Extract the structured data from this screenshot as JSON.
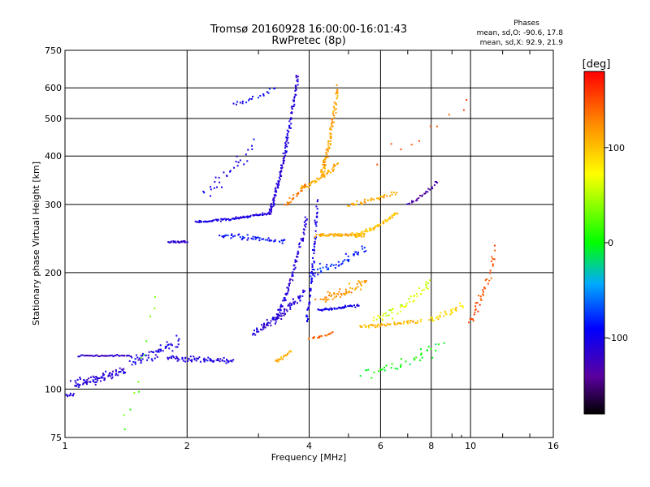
{
  "chart_data": {
    "type": "scatter",
    "title": "Tromsø 20160928 16:00:00-16:01:43",
    "subtitle": "RwPretec (8p)",
    "xlabel": "Frequency [MHz]",
    "ylabel": "Stationary phase Virtual Height [km]",
    "x_scale": "log",
    "y_scale": "log",
    "xlim": [
      1,
      16
    ],
    "ylim": [
      75,
      750
    ],
    "x_ticks": [
      1,
      2,
      4,
      6,
      8,
      10,
      16
    ],
    "x_tick_labels": [
      "1",
      "2",
      "4",
      "6",
      "8",
      "10",
      "16"
    ],
    "y_ticks": [
      75,
      100,
      200,
      300,
      400,
      500,
      600,
      750
    ],
    "y_tick_labels": [
      "75",
      "100",
      "200",
      "300",
      "400",
      "500",
      "600",
      "750"
    ],
    "grid": true,
    "stats": {
      "heading": "Phases",
      "line_o": "mean, sd,O: -90.6, 17.8",
      "line_x": "mean, sd,X:  92.9, 21.9"
    },
    "colorbar": {
      "label": "[deg]",
      "ticks": [
        100,
        0,
        -100
      ],
      "tick_labels": [
        "100",
        "0",
        "-100"
      ],
      "range": [
        -180,
        180
      ]
    },
    "series": [
      {
        "traces": [
          {
            "x": [
              1.0,
              1.05
            ],
            "y": [
              96,
              97
            ],
            "phase": -110,
            "n": 10,
            "jx": 0.01,
            "jy": 0.01
          },
          {
            "x": [
              1.05,
              1.4
            ],
            "y": [
              103,
              112
            ],
            "phase": -110,
            "n": 85,
            "jx": 0.03,
            "jy": 0.04
          },
          {
            "x": [
              1.08,
              1.45
            ],
            "y": [
              122,
              122
            ],
            "phase": -120,
            "n": 40,
            "jx": 0.005,
            "jy": 0.006
          },
          {
            "x": [
              1.45,
              1.9
            ],
            "y": [
              118,
              133
            ],
            "phase": -105,
            "n": 60,
            "jx": 0.03,
            "jy": 0.05
          },
          {
            "x": [
              1.8,
              2.6
            ],
            "y": [
              120,
              118
            ],
            "phase": -105,
            "n": 70,
            "jx": 0.02,
            "jy": 0.025
          },
          {
            "x": [
              1.8,
              2.0
            ],
            "y": [
              240,
              240
            ],
            "phase": -115,
            "n": 25,
            "jx": 0.01,
            "jy": 0.008
          },
          {
            "x": [
              2.1,
              3.2
            ],
            "y": [
              270,
              285
            ],
            "phase": -105,
            "n": 90,
            "jx": 0.01,
            "jy": 0.01
          },
          {
            "x": [
              3.2,
              3.75
            ],
            "y": [
              285,
              650
            ],
            "phase": -110,
            "n": 130,
            "jx": 0.012,
            "jy": 0.02
          },
          {
            "x": [
              2.4,
              3.5
            ],
            "y": [
              250,
              240
            ],
            "phase": -90,
            "n": 50,
            "jx": 0.02,
            "jy": 0.02
          },
          {
            "x": [
              2.6,
              3.3
            ],
            "y": [
              540,
              600
            ],
            "phase": -95,
            "n": 20,
            "jx": 0.02,
            "jy": 0.02
          },
          {
            "x": [
              2.2,
              2.9
            ],
            "y": [
              320,
              430
            ],
            "phase": -100,
            "n": 30,
            "jx": 0.04,
            "jy": 0.05
          },
          {
            "x": [
              2.9,
              3.9
            ],
            "y": [
              140,
              180
            ],
            "phase": -110,
            "n": 80,
            "jx": 0.03,
            "jy": 0.03
          },
          {
            "x": [
              3.3,
              3.95
            ],
            "y": [
              150,
              280
            ],
            "phase": -110,
            "n": 90,
            "jx": 0.012,
            "jy": 0.03
          },
          {
            "x": [
              3.95,
              4.2
            ],
            "y": [
              150,
              310
            ],
            "phase": -100,
            "n": 70,
            "jx": 0.01,
            "jy": 0.05
          },
          {
            "x": [
              3.8,
              4.7
            ],
            "y": [
              330,
              380
            ],
            "phase": 110,
            "n": 50,
            "jx": 0.02,
            "jy": 0.02
          },
          {
            "x": [
              4.3,
              4.7
            ],
            "y": [
              360,
              600
            ],
            "phase": 115,
            "n": 90,
            "jx": 0.015,
            "jy": 0.03
          },
          {
            "x": [
              4.2,
              5.5
            ],
            "y": [
              250,
              250
            ],
            "phase": 110,
            "n": 70,
            "jx": 0.025,
            "jy": 0.015
          },
          {
            "x": [
              5.2,
              6.6
            ],
            "y": [
              250,
              285
            ],
            "phase": 100,
            "n": 60,
            "jx": 0.015,
            "jy": 0.015
          },
          {
            "x": [
              5.0,
              6.5
            ],
            "y": [
              300,
              320
            ],
            "phase": 110,
            "n": 40,
            "jx": 0.02,
            "jy": 0.02
          },
          {
            "x": [
              4.3,
              5.5
            ],
            "y": [
              170,
              190
            ],
            "phase": 120,
            "n": 60,
            "jx": 0.04,
            "jy": 0.04
          },
          {
            "x": [
              4.2,
              5.3
            ],
            "y": [
              160,
              165
            ],
            "phase": -100,
            "n": 50,
            "jx": 0.02,
            "jy": 0.01
          },
          {
            "x": [
              4.0,
              5.5
            ],
            "y": [
              200,
              230
            ],
            "phase": -80,
            "n": 50,
            "jx": 0.03,
            "jy": 0.04
          },
          {
            "x": [
              5.3,
              7.5
            ],
            "y": [
              145,
              150
            ],
            "phase": 105,
            "n": 60,
            "jx": 0.02,
            "jy": 0.015
          },
          {
            "x": [
              5.8,
              8.0
            ],
            "y": [
              150,
              190
            ],
            "phase": 60,
            "n": 50,
            "jx": 0.04,
            "jy": 0.05
          },
          {
            "x": [
              7.0,
              8.3
            ],
            "y": [
              300,
              345
            ],
            "phase": -130,
            "n": 25,
            "jx": 0.01,
            "jy": 0.015
          },
          {
            "x": [
              8.0,
              9.5
            ],
            "y": [
              150,
              165
            ],
            "phase": 90,
            "n": 30,
            "jx": 0.03,
            "jy": 0.03
          },
          {
            "x": [
              10.0,
              11.5
            ],
            "y": [
              150,
              230
            ],
            "phase": 150,
            "n": 40,
            "jx": 0.02,
            "jy": 0.05
          },
          {
            "x": [
              3.3,
              3.6
            ],
            "y": [
              118,
              125
            ],
            "phase": 110,
            "n": 20,
            "jx": 0.02,
            "jy": 0.01
          },
          {
            "x": [
              4.0,
              4.6
            ],
            "y": [
              135,
              140
            ],
            "phase": 140,
            "n": 20,
            "jx": 0.02,
            "jy": 0.01
          },
          {
            "x": [
              3.5,
              3.95
            ],
            "y": [
              300,
              340
            ],
            "phase": 130,
            "n": 25,
            "jx": 0.02,
            "jy": 0.02
          },
          {
            "x": [
              5.5,
              8.5
            ],
            "y": [
              110,
              130
            ],
            "phase": 0,
            "n": 40,
            "jx": 0.06,
            "jy": 0.06
          },
          {
            "x": [
              1.4,
              1.7
            ],
            "y": [
              80,
              175
            ],
            "phase": 20,
            "n": 12,
            "jx": 0.05,
            "jy": 0.1
          },
          {
            "x": [
              6.0,
              10.0
            ],
            "y": [
              400,
              560
            ],
            "phase": 150,
            "n": 10,
            "jx": 0.05,
            "jy": 0.08
          }
        ]
      }
    ]
  }
}
